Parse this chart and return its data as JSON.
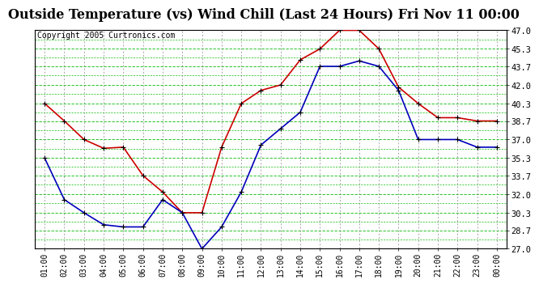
{
  "title": "Outside Temperature (vs) Wind Chill (Last 24 Hours) Fri Nov 11 00:00",
  "copyright": "Copyright 2005 Curtronics.com",
  "x_labels": [
    "01:00",
    "02:00",
    "03:00",
    "04:00",
    "05:00",
    "06:00",
    "07:00",
    "08:00",
    "09:00",
    "10:00",
    "11:00",
    "12:00",
    "13:00",
    "14:00",
    "15:00",
    "16:00",
    "17:00",
    "18:00",
    "19:00",
    "20:00",
    "21:00",
    "22:00",
    "23:00",
    "00:00"
  ],
  "outside_temp": [
    40.3,
    38.7,
    37.0,
    36.2,
    36.3,
    33.7,
    32.2,
    30.3,
    30.3,
    36.3,
    40.3,
    41.5,
    42.0,
    44.3,
    45.3,
    47.0,
    47.0,
    45.3,
    41.8,
    40.3,
    39.0,
    39.0,
    38.7,
    38.7
  ],
  "wind_chill": [
    35.3,
    31.5,
    30.3,
    29.2,
    29.0,
    29.0,
    31.5,
    30.3,
    27.0,
    29.0,
    32.2,
    36.5,
    38.0,
    39.5,
    43.7,
    43.7,
    44.2,
    43.7,
    41.5,
    37.0,
    37.0,
    37.0,
    36.3,
    36.3
  ],
  "temp_color": "#cc0000",
  "chill_color": "#0000bb",
  "marker_color": "#000000",
  "bg_color": "#ffffff",
  "plot_bg": "#ffffff",
  "grid_h_color": "#00bb00",
  "grid_v_color": "#888888",
  "ylim": [
    27.0,
    47.0
  ],
  "yticks": [
    27.0,
    28.7,
    30.3,
    32.0,
    33.7,
    35.3,
    37.0,
    38.7,
    40.3,
    42.0,
    43.7,
    45.3,
    47.0
  ],
  "title_fontsize": 11.5,
  "copyright_fontsize": 7,
  "tick_fontsize": 7,
  "ytick_fontsize": 7.5
}
